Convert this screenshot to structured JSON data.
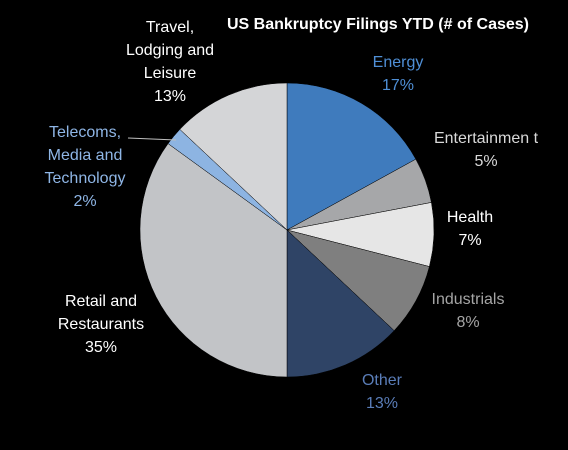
{
  "chart_data": {
    "type": "pie",
    "title": "US Bankruptcy Filings YTD (# of Cases)",
    "slices": [
      {
        "name": "Energy",
        "label_lines": [
          "Energy"
        ],
        "value": 17,
        "value_label": "17%",
        "color": "#3f7bbd",
        "label_color": "#4f8fd6"
      },
      {
        "name": "Entertainment",
        "label_lines": [
          "Entertainmen t"
        ],
        "value": 5,
        "value_label": "5%",
        "color": "#a6a7a9",
        "label_color": "#d9d9d9"
      },
      {
        "name": "Health",
        "label_lines": [
          "Health"
        ],
        "value": 7,
        "value_label": "7%",
        "color": "#e6e6e6",
        "label_color": "#ffffff"
      },
      {
        "name": "Industrials",
        "label_lines": [
          "Industrials"
        ],
        "value": 8,
        "value_label": "8%",
        "color": "#7f7f7f",
        "label_color": "#a5a5a5"
      },
      {
        "name": "Other",
        "label_lines": [
          "Other"
        ],
        "value": 13,
        "value_label": "13%",
        "color": "#2f4466",
        "label_color": "#5a7db8"
      },
      {
        "name": "Retail and Restaurants",
        "label_lines": [
          "Retail and",
          "Restaurants"
        ],
        "value": 35,
        "value_label": "35%",
        "color": "#c2c4c7",
        "label_color": "#ffffff"
      },
      {
        "name": "Telecoms, Media and Technology",
        "label_lines": [
          "Telecoms,",
          "Media and",
          "Technology"
        ],
        "value": 2,
        "value_label": "2%",
        "color": "#8db4e2",
        "label_color": "#8fb6e6"
      },
      {
        "name": "Travel, Lodging and Leisure",
        "label_lines": [
          "Travel,",
          "Lodging and",
          "Leisure"
        ],
        "value": 13,
        "value_label": "13%",
        "color": "#d4d5d7",
        "label_color": "#ffffff"
      }
    ]
  }
}
